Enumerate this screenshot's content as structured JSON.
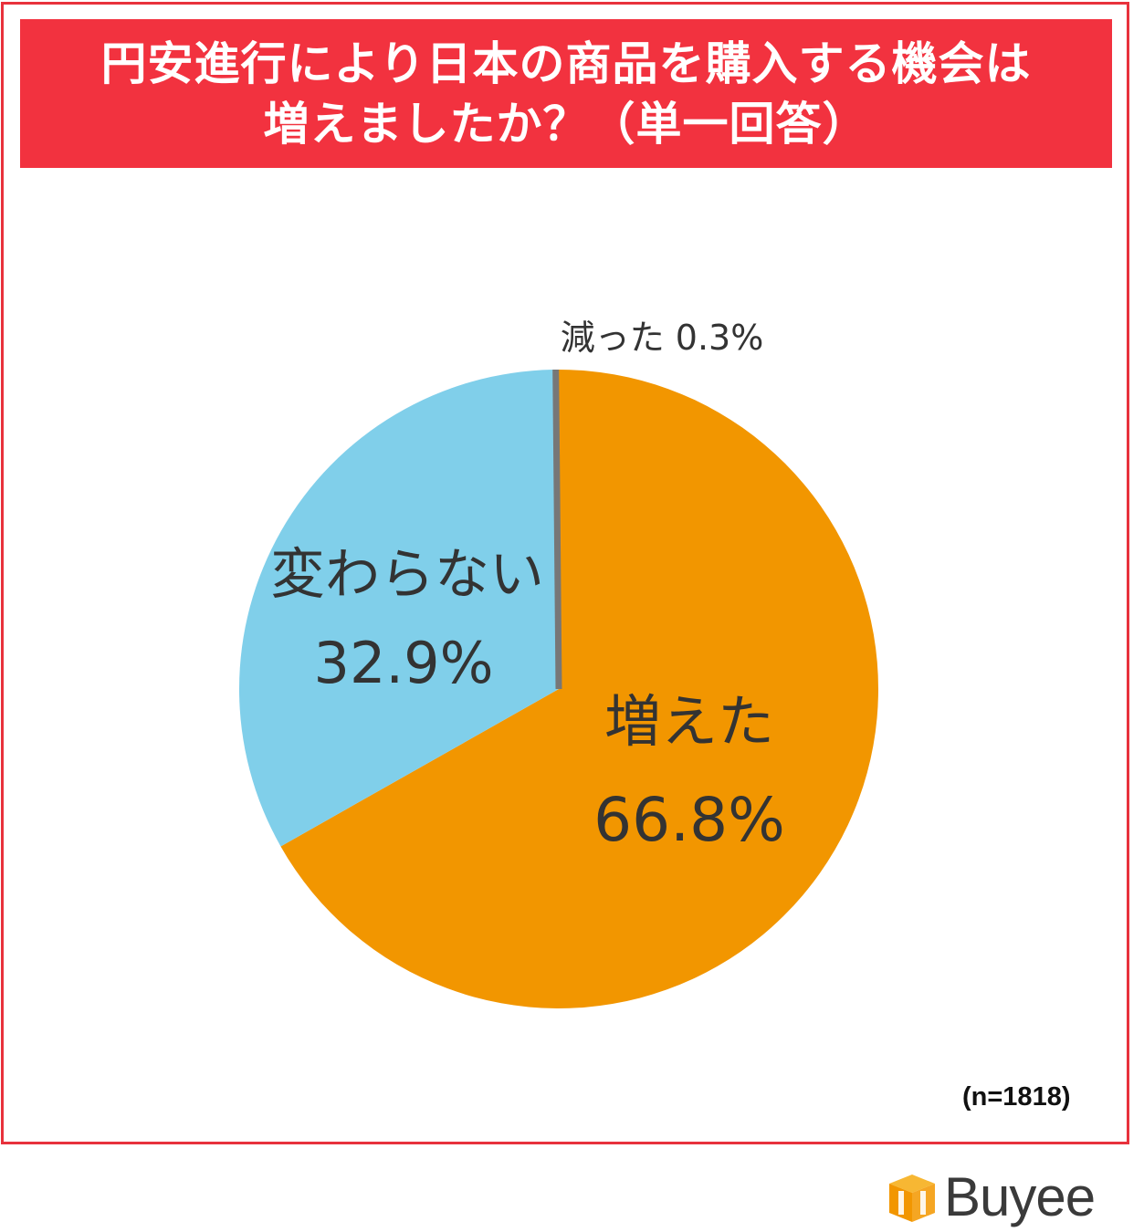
{
  "title": {
    "line1": "円安進行により日本の商品を購入する機会は",
    "line2": "増えましたか？（単一回答）"
  },
  "sample_size": "(n=1818)",
  "brand": {
    "name": "Buyee",
    "icon": "box-logo-icon"
  },
  "colors": {
    "frame": "#e8323c",
    "title_band": "#f2323f",
    "increased": "#f29600",
    "unchanged": "#80cfea",
    "decreased": "#777777"
  },
  "chart_data": {
    "type": "pie",
    "start_angle_deg": 0,
    "direction": "clockwise",
    "slices": [
      {
        "label": "増えた",
        "value": 66.8,
        "value_label": "66.8%",
        "color": "#f29600"
      },
      {
        "label": "変わらない",
        "value": 32.9,
        "value_label": "32.9%",
        "color": "#80cfea"
      },
      {
        "label": "減った",
        "value": 0.3,
        "value_label": "0.3%",
        "color": "#777777"
      }
    ]
  }
}
